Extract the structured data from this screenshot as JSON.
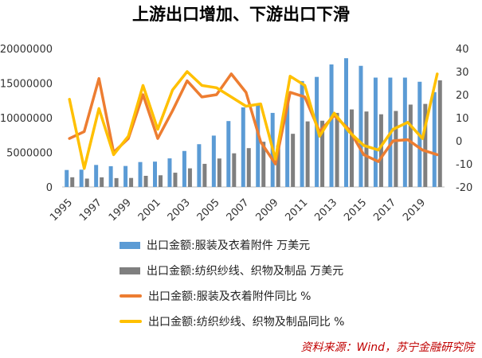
{
  "chart_data": {
    "title": "上游出口增加、下游出口下滑",
    "type": "bar+line",
    "x": [
      1995,
      1996,
      1997,
      1998,
      1999,
      2000,
      2001,
      2002,
      2003,
      2004,
      2005,
      2006,
      2007,
      2008,
      2009,
      2010,
      2011,
      2012,
      2013,
      2014,
      2015,
      2016,
      2017,
      2018,
      2019,
      2020
    ],
    "x_tick_labels": [
      "1995",
      "1997",
      "1999",
      "2001",
      "2003",
      "2005",
      "2007",
      "2009",
      "2011",
      "2013",
      "2015",
      "2017",
      "2019"
    ],
    "left_axis": {
      "ylim": [
        0,
        20000000
      ],
      "ticks": [
        "0",
        "5000000",
        "10000000",
        "15000000",
        "20000000"
      ]
    },
    "right_axis": {
      "ylim": [
        -20,
        40
      ],
      "ticks": [
        "-20",
        "-10",
        "0",
        "10",
        "20",
        "30",
        "40"
      ]
    },
    "series": [
      {
        "name": "出口金额:服装及衣着附件 万美元",
        "kind": "bar",
        "axis": "left",
        "color": "#5B9BD5",
        "values": [
          2450000,
          2500000,
          3180000,
          3000000,
          3030000,
          3600000,
          3660000,
          4130000,
          5200000,
          6180000,
          7420000,
          9520000,
          11500000,
          12000000,
          10700000,
          13000000,
          15300000,
          15900000,
          17700000,
          18600000,
          17500000,
          15800000,
          15800000,
          15800000,
          15200000,
          13700000
        ]
      },
      {
        "name": "出口金额:纺织纱线、织物及制品 万美元",
        "kind": "bar",
        "axis": "left",
        "color": "#7F7F7F",
        "values": [
          1400000,
          1210000,
          1390000,
          1280000,
          1300000,
          1610000,
          1690000,
          2060000,
          2690000,
          3340000,
          4110000,
          4860000,
          5610000,
          6530000,
          6010000,
          7680000,
          9470000,
          9570000,
          10700000,
          11200000,
          10900000,
          10500000,
          10980000,
          11900000,
          12000000,
          15400000
        ]
      },
      {
        "name": "出口金额:服装及衣着附件同比 %",
        "kind": "line",
        "axis": "right",
        "color": "#ED7D31",
        "values": [
          1,
          4,
          27,
          -5,
          1,
          20,
          1,
          13,
          26,
          19,
          20,
          29,
          21,
          -0.5,
          -10,
          21,
          19,
          4,
          11,
          5,
          -6,
          -9,
          0,
          0.5,
          -4,
          -6
        ]
      },
      {
        "name": "出口金额:纺织纱线、织物及制品同比 %",
        "kind": "line",
        "axis": "right",
        "color": "#FFC000",
        "values": [
          18,
          -12,
          14,
          -6,
          2,
          24,
          5,
          22,
          30,
          24,
          23,
          19,
          15,
          16,
          -8,
          28,
          24,
          2,
          12,
          4,
          -2,
          -4,
          5,
          8,
          1,
          29
        ]
      }
    ],
    "legend_position": "bottom-left",
    "source": "资料来源：Wind，苏宁金融研究院"
  }
}
